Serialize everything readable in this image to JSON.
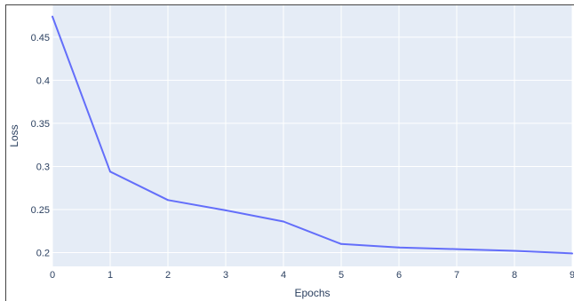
{
  "chart_data": {
    "type": "line",
    "title": "",
    "xlabel": "Epochs",
    "ylabel": "Loss",
    "x": [
      0,
      1,
      2,
      3,
      4,
      5,
      6,
      7,
      8,
      9
    ],
    "series": [
      {
        "values": [
          0.474,
          0.294,
          0.261,
          0.249,
          0.236,
          0.21,
          0.206,
          0.204,
          0.202,
          0.199
        ]
      }
    ],
    "xlim": [
      0,
      9
    ],
    "ylim": [
      0.184,
      0.487
    ],
    "xticks": [
      "0",
      "1",
      "2",
      "3",
      "4",
      "5",
      "6",
      "7",
      "8",
      "9"
    ],
    "yticks": [
      "0.2",
      "0.25",
      "0.3",
      "0.35",
      "0.4",
      "0.45"
    ],
    "grid": true,
    "legend": "none",
    "colors": {
      "line": "#636efa",
      "plot_bg": "#e5ecf6",
      "grid": "#ffffff",
      "text": "#2a3f5f"
    }
  }
}
